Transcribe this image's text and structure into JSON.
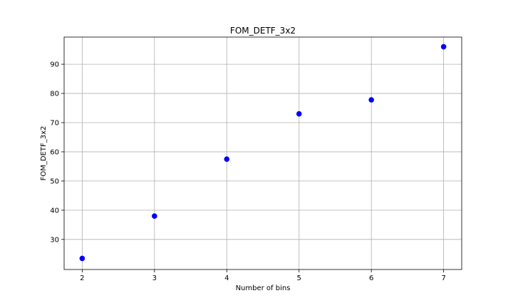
{
  "chart_data": {
    "type": "scatter",
    "title": "FOM_DETF_3x2",
    "xlabel": "Number of bins",
    "ylabel": "FOM_DETF_3x2",
    "x": [
      2,
      3,
      4,
      5,
      6,
      7
    ],
    "y": [
      23.5,
      38.0,
      57.5,
      73.0,
      77.8,
      96.0
    ],
    "xlim": [
      1.75,
      7.25
    ],
    "ylim": [
      19.7,
      99.3
    ],
    "xticks": [
      2,
      3,
      4,
      5,
      6,
      7
    ],
    "yticks": [
      30,
      40,
      50,
      60,
      70,
      80,
      90
    ],
    "grid": true,
    "marker_color": "#0000ff"
  }
}
